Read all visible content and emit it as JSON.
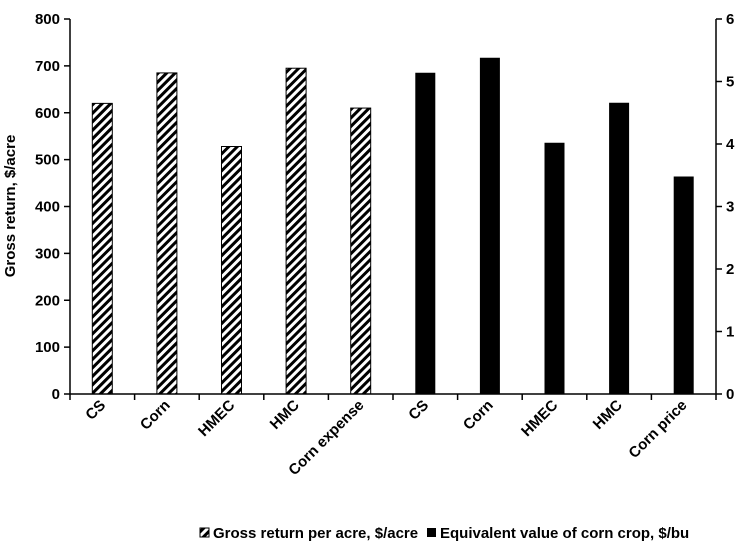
{
  "chart_data": {
    "type": "bar",
    "categories": [
      "CS",
      "Corn",
      "HMEC",
      "HMC",
      "Corn expense",
      "CS",
      "Corn",
      "HMEC",
      "HMC",
      "Corn price"
    ],
    "ylabel": "Gross return, $/acre",
    "ylim": [
      0,
      800
    ],
    "yticks": [
      0,
      100,
      200,
      300,
      400,
      500,
      600,
      700,
      800
    ],
    "y2lim": [
      0,
      6
    ],
    "y2ticks": [
      0,
      1,
      2,
      3,
      4,
      5,
      6
    ],
    "series": [
      {
        "name": "Gross return per acre, $/acre",
        "axis": "left",
        "pattern": "hatched",
        "values": [
          620,
          685,
          528,
          695,
          610,
          null,
          null,
          null,
          null,
          null
        ]
      },
      {
        "name": "Equivalent value of corn crop, $/bu",
        "axis": "right",
        "pattern": "solid",
        "values": [
          null,
          null,
          null,
          null,
          null,
          5.14,
          5.38,
          4.02,
          4.66,
          3.48
        ]
      }
    ],
    "legend_position": "bottom",
    "grid": false,
    "colors": {
      "bar_fill": "#000000",
      "hatch_background": "#ffffff",
      "axis": "#000000"
    }
  }
}
